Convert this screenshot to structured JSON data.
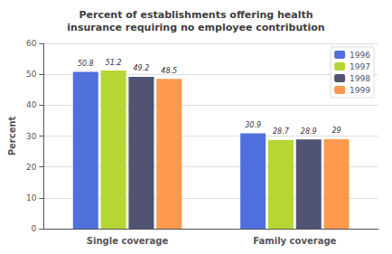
{
  "chart_data": {
    "type": "bar",
    "title": "Percent of establishments offering health\ninsurance requiring no employee contribution",
    "ylabel": "Percent",
    "categories": [
      "Single coverage",
      "Family coverage"
    ],
    "series": [
      {
        "name": "1996",
        "values": [
          50.8,
          30.9
        ]
      },
      {
        "name": "1997",
        "values": [
          51.2,
          28.7
        ]
      },
      {
        "name": "1998",
        "values": [
          49.2,
          28.9
        ]
      },
      {
        "name": "1999",
        "values": [
          48.5,
          29.0
        ]
      }
    ],
    "ylim": [
      0,
      60
    ],
    "yticks": [
      0,
      10,
      20,
      30,
      40,
      50,
      60
    ],
    "grid": true,
    "legend": "upper right",
    "data_labels": true
  }
}
